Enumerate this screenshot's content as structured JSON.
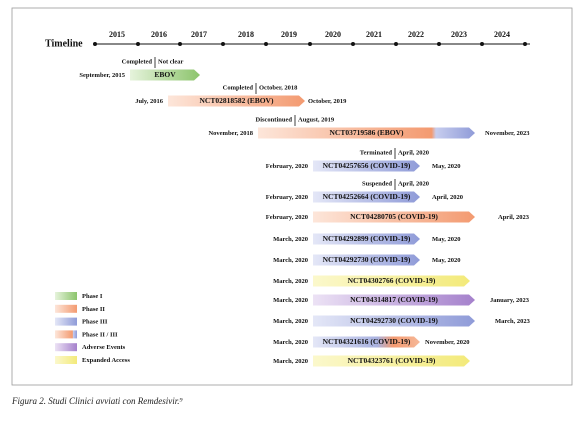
{
  "timeline": {
    "label": "Timeline",
    "years": [
      "2015",
      "2016",
      "2017",
      "2018",
      "2019",
      "2020",
      "2021",
      "2022",
      "2023",
      "2024"
    ]
  },
  "trials": [
    {
      "start": "September, 2015",
      "name": "EBOV",
      "status": "Completed",
      "status_date": "Not clear"
    },
    {
      "start": "July, 2016",
      "name": "NCT02818582 (EBOV)",
      "end": "October, 2019",
      "status": "Completed",
      "status_date": "October, 2018"
    },
    {
      "start": "November, 2018",
      "name": "NCT03719586 (EBOV)",
      "end": "November, 2023",
      "status": "Discontinued",
      "status_date": "August, 2019"
    },
    {
      "start": "February, 2020",
      "name": "NCT04257656 (COVID-19)",
      "end": "May, 2020",
      "status": "Terminated",
      "status_date": "April, 2020"
    },
    {
      "start": "February, 2020",
      "name": "NCT04252664 (COVID-19)",
      "end": "April, 2020",
      "status": "Suspended",
      "status_date": "April, 2020"
    },
    {
      "start": "February, 2020",
      "name": "NCT04280705 (COVID-19)",
      "end": "April, 2023"
    },
    {
      "start": "March, 2020",
      "name": "NCT04292899 (COVID-19)",
      "end": "May, 2020"
    },
    {
      "start": "March, 2020",
      "name": "NCT04292730 (COVID-19)",
      "end": "May, 2020"
    },
    {
      "start": "March, 2020",
      "name": "NCT04302766 (COVID-19)"
    },
    {
      "start": "March, 2020",
      "name": "NCT04314817 (COVID-19)",
      "end": "January, 2023"
    },
    {
      "start": "March, 2020",
      "name": "NCT04292730 (COVID-19)",
      "end": "March, 2023"
    },
    {
      "start": "March, 2020",
      "name": "NCT04321616 (COVID-19)",
      "end": "November, 2020"
    },
    {
      "start": "March, 2020",
      "name": "NCT04323761 (COVID-19)"
    }
  ],
  "legend": [
    "Phase I",
    "Phase II",
    "Phase III",
    "Phase II / III",
    "Adverse Events",
    "Expanded Access"
  ],
  "caption": "Figura 2. Studi Clinici avviati con Remdesivir.⁹"
}
